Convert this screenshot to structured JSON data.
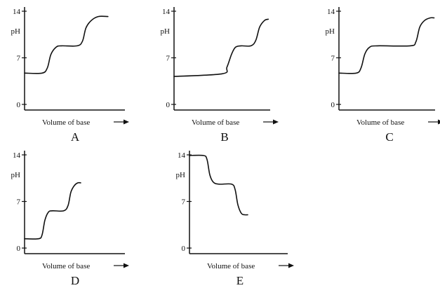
{
  "chart_data": [
    {
      "type": "line",
      "title": "",
      "panel_label": "A",
      "xlabel": "Volume of base",
      "ylabel": "pH",
      "yticks": [
        0,
        7,
        14
      ],
      "ylim": [
        0,
        14
      ],
      "xlim": [
        0,
        10
      ],
      "x": [
        0,
        2.0,
        2.6,
        3.0,
        3.6,
        4.2,
        6.0,
        6.6,
        7.0,
        7.6,
        8.4,
        9.5
      ],
      "values": [
        4.7,
        4.7,
        5.5,
        7.5,
        8.6,
        8.8,
        8.8,
        9.5,
        11.5,
        12.6,
        13.2,
        13.2
      ]
    },
    {
      "type": "line",
      "title": "",
      "panel_label": "B",
      "xlabel": "Volume of base",
      "ylabel": "pH",
      "yticks": [
        0,
        7,
        14
      ],
      "ylim": [
        0,
        14
      ],
      "xlim": [
        0,
        10
      ],
      "x": [
        0,
        5.0,
        5.5,
        6.0,
        6.4,
        7.0,
        8.0,
        8.5,
        8.9,
        9.4,
        9.8
      ],
      "values": [
        4.2,
        4.6,
        5.6,
        7.6,
        8.6,
        8.8,
        8.8,
        9.6,
        11.6,
        12.6,
        12.8
      ]
    },
    {
      "type": "line",
      "title": "",
      "panel_label": "C",
      "xlabel": "Volume of base",
      "ylabel": "pH",
      "yticks": [
        0,
        7,
        14
      ],
      "ylim": [
        0,
        14
      ],
      "xlim": [
        0,
        10
      ],
      "x": [
        0,
        1.8,
        2.3,
        2.7,
        3.2,
        4.0,
        7.4,
        8.0,
        8.4,
        8.9,
        9.5,
        9.9
      ],
      "values": [
        4.7,
        4.7,
        5.5,
        7.6,
        8.6,
        8.8,
        8.8,
        9.4,
        11.6,
        12.6,
        13.0,
        13.0
      ]
    },
    {
      "type": "line",
      "title": "",
      "panel_label": "D",
      "xlabel": "Volume of base",
      "ylabel": "pH",
      "yticks": [
        0,
        7,
        14
      ],
      "ylim": [
        0,
        14
      ],
      "xlim": [
        0,
        10
      ],
      "x": [
        0,
        2.0,
        2.5,
        2.9,
        3.4,
        4.0,
        5.6,
        6.2,
        6.6,
        7.1,
        7.6,
        8.0
      ],
      "values": [
        1.4,
        1.4,
        2.0,
        4.2,
        5.4,
        5.6,
        5.6,
        6.4,
        8.4,
        9.4,
        9.8,
        9.8
      ]
    },
    {
      "type": "line",
      "title": "",
      "panel_label": "E",
      "xlabel": "Volume of base",
      "ylabel": "pH",
      "yticks": [
        0,
        7,
        14
      ],
      "ylim": [
        0,
        14
      ],
      "xlim": [
        0,
        10
      ],
      "x": [
        0,
        2.0,
        2.5,
        2.9,
        3.4,
        4.2,
        6.0,
        6.5,
        6.9,
        7.4,
        7.9,
        8.3
      ],
      "values": [
        13.9,
        13.9,
        13.3,
        11.0,
        9.9,
        9.6,
        9.6,
        8.8,
        6.5,
        5.2,
        5.0,
        5.0
      ]
    }
  ]
}
